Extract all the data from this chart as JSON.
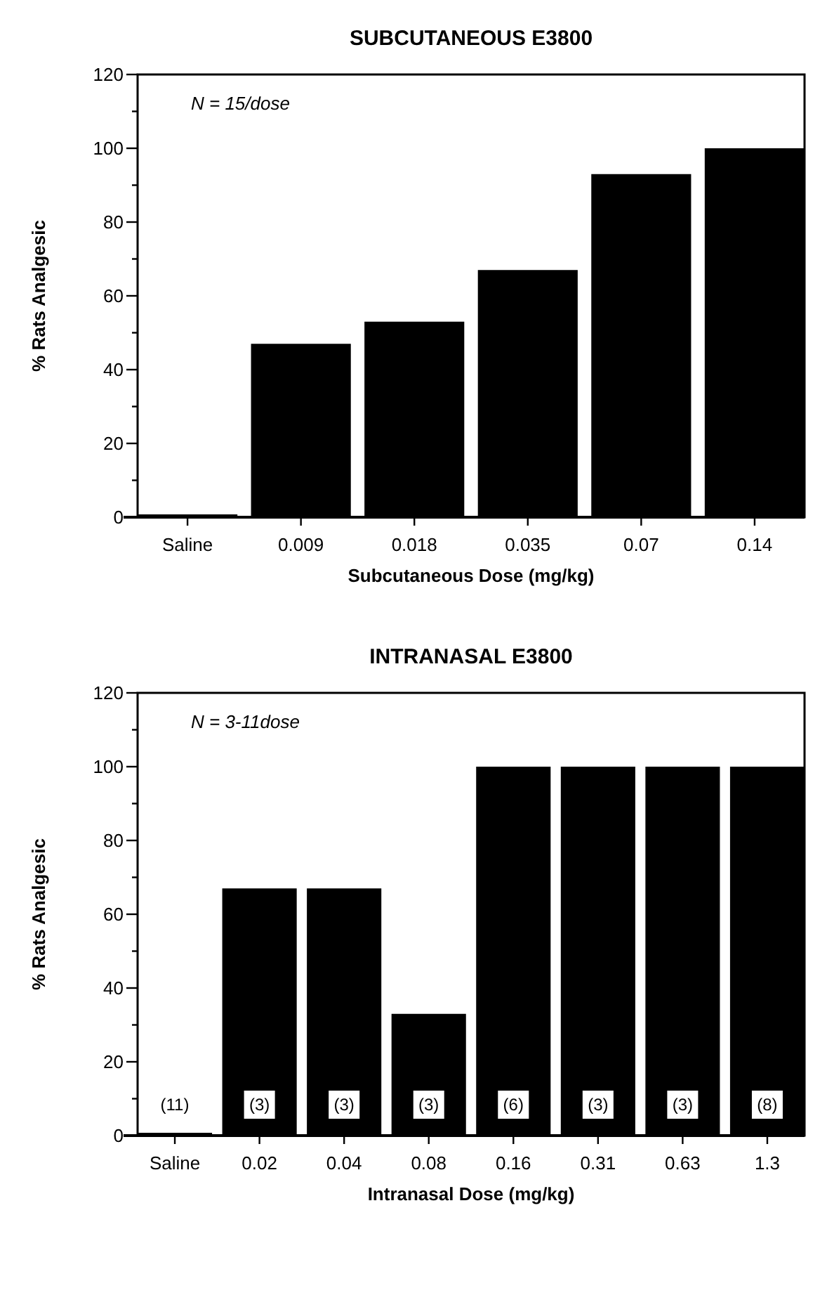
{
  "chart_data": [
    {
      "type": "bar",
      "title": "SUBCUTANEOUS E3800",
      "xlabel": "Subcutaneous Dose (mg/kg)",
      "ylabel": "% Rats Analgesic",
      "categories": [
        "Saline",
        "0.009",
        "0.018",
        "0.035",
        "0.07",
        "0.14"
      ],
      "values": [
        0,
        47,
        53,
        67,
        93,
        100
      ],
      "color": "#000000",
      "ylim": [
        0,
        120
      ],
      "yticks": [
        0,
        {
          "value": 10,
          "label": null
        },
        20,
        {
          "value": 30,
          "label": null
        },
        40,
        {
          "value": 50,
          "label": null
        },
        60,
        {
          "value": 70,
          "label": null
        },
        80,
        {
          "value": 90,
          "label": null
        },
        100,
        {
          "value": 110,
          "label": null
        },
        120
      ],
      "annotations": [
        "N = 15/dose"
      ]
    },
    {
      "type": "bar",
      "title": "INTRANASAL E3800",
      "xlabel": "Intranasal Dose (mg/kg)",
      "ylabel": "% Rats Analgesic",
      "categories": [
        "Saline",
        "0.02",
        "0.04",
        "0.08",
        "0.16",
        "0.31",
        "0.63",
        "1.3"
      ],
      "values": [
        0,
        67,
        67,
        33,
        100,
        100,
        100,
        100
      ],
      "color": "#000000",
      "ylim": [
        0,
        120
      ],
      "yticks": [
        0,
        {
          "value": 10,
          "label": null
        },
        20,
        {
          "value": 30,
          "label": null
        },
        40,
        {
          "value": 50,
          "label": null
        },
        60,
        {
          "value": 70,
          "label": null
        },
        80,
        {
          "value": 90,
          "label": null
        },
        100,
        {
          "value": 110,
          "label": null
        },
        120
      ],
      "annotations": [
        "N = 3-11dose",
        "(11)",
        "(3)",
        "(3)",
        "(3)",
        "(6)",
        "(3)",
        "(3)",
        "(8)"
      ]
    }
  ]
}
